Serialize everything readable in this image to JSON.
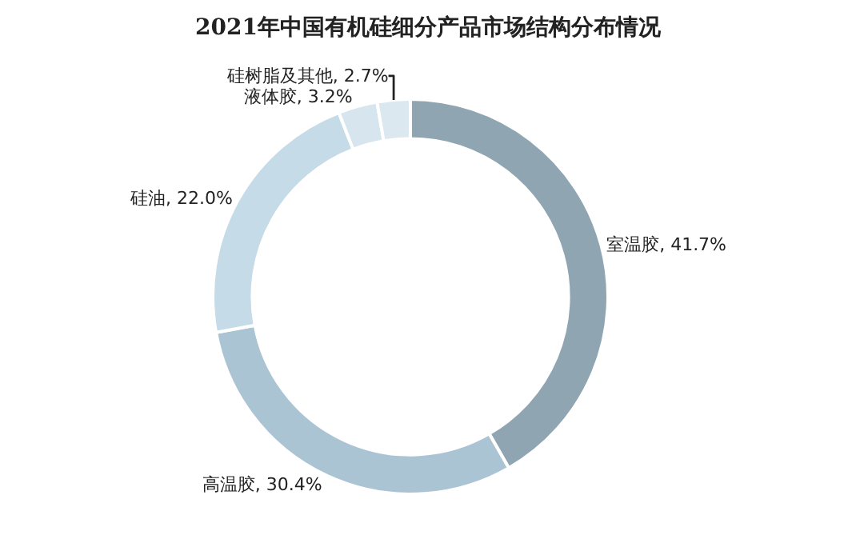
{
  "chart_data": {
    "type": "donut",
    "title": "2021年中国有机硅细分产品市场结构分布情况",
    "categories": [
      "室温胶",
      "高温胶",
      "硅油",
      "液体胶",
      "硅树脂及其他"
    ],
    "values": [
      41.7,
      30.4,
      22.0,
      3.2,
      2.7
    ],
    "colors": [
      "#8fa5b2",
      "#abc4d4",
      "#c5dbe7",
      "#d7e5ee",
      "#dce8f0"
    ],
    "value_labels": [
      "41.7%",
      "30.4%",
      "22.0%",
      "3.2%",
      "2.7%"
    ],
    "legend": false
  }
}
